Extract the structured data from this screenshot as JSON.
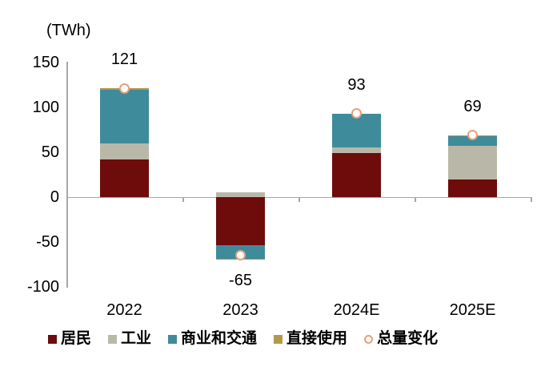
{
  "unit_label": "(TWh)",
  "chart_data": {
    "type": "bar",
    "stacked": true,
    "unit": "(TWh)",
    "categories": [
      "2022",
      "2023",
      "2024E",
      "2025E"
    ],
    "series": [
      {
        "name": "居民",
        "color": "#6E0B0B",
        "values": [
          42,
          -54,
          49,
          20
        ]
      },
      {
        "name": "工业",
        "color": "#B9B8A8",
        "values": [
          18,
          5,
          6,
          37
        ]
      },
      {
        "name": "商业和交通",
        "color": "#3E8B9C",
        "values": [
          60,
          -15,
          38,
          11
        ]
      },
      {
        "name": "直接使用",
        "color": "#B3994B",
        "values": [
          1,
          -1,
          0,
          1
        ]
      }
    ],
    "markers": {
      "name": "总量变化",
      "values": [
        121,
        -65,
        93,
        69
      ],
      "fill": "#FFFFFF",
      "ring_color": "#E5A178"
    },
    "total_labels": [
      "121",
      "-65",
      "93",
      "69"
    ],
    "yticks": [
      150,
      100,
      50,
      0,
      -50,
      -100
    ],
    "ylim": [
      -100,
      150
    ],
    "grid": false,
    "legend_position": "bottom",
    "axis_color": "#A6A6A6",
    "text_color": "#000000"
  },
  "legend": {
    "items": [
      {
        "label": "居民",
        "swatch": "square",
        "color": "#6E0B0B"
      },
      {
        "label": "工业",
        "swatch": "square",
        "color": "#B9B8A8"
      },
      {
        "label": "商业和交通",
        "swatch": "square",
        "color": "#3E8B9C"
      },
      {
        "label": "直接使用",
        "swatch": "square",
        "color": "#B3994B"
      },
      {
        "label": "总量变化",
        "swatch": "circle",
        "color": "#E5A178"
      }
    ]
  }
}
